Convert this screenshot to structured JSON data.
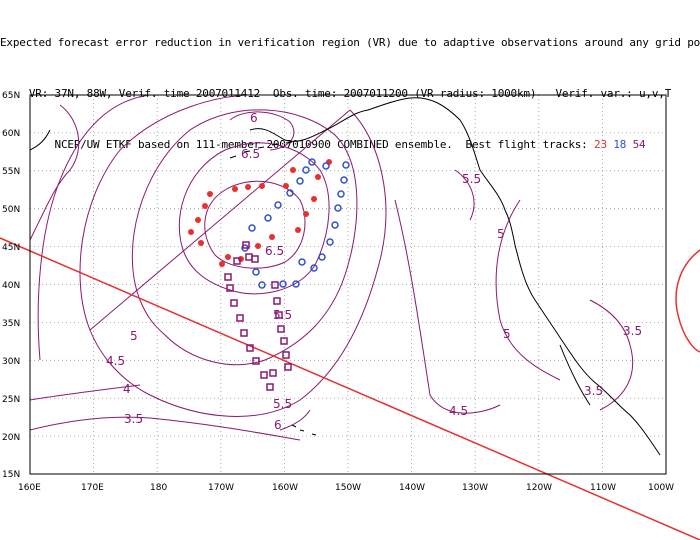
{
  "title": {
    "line1": "Expected forecast error reduction in verification region (VR) due to adaptive observations around any grid point.",
    "line2": "VR: 37N, 88W, Verif. time 2007011412  Obs. time: 2007011200 (VR radius: 1000km)   Verif. var.: u,v,T",
    "line3_prefix": "NCEP/UW ETKF based on 111-member 2007010900 COMBINED ensemble.  Best flight tracks: ",
    "track_ids": [
      "23",
      "18",
      "54"
    ]
  },
  "map": {
    "lat_labels": [
      "65N",
      "60N",
      "55N",
      "50N",
      "45N",
      "40N",
      "35N",
      "30N",
      "25N",
      "20N",
      "15N"
    ],
    "lon_labels": [
      "160E",
      "170E",
      "180",
      "170W",
      "160W",
      "150W",
      "140W",
      "130W",
      "120W",
      "110W",
      "100W"
    ],
    "contour_labels": [
      "6",
      "6.5",
      "5.5",
      "5",
      "6.5",
      "5.5",
      "5",
      "3.5",
      "5",
      "4.5",
      "4",
      "3.5",
      "5.5",
      "6",
      "4.5",
      "3.5"
    ],
    "colors": {
      "contour": "#8a1a6e",
      "track_23": "#e83030",
      "track_18": "#3050d0",
      "track_54": "#8a1a6e",
      "verification_line": "#e83030",
      "grid": "#888888"
    }
  }
}
